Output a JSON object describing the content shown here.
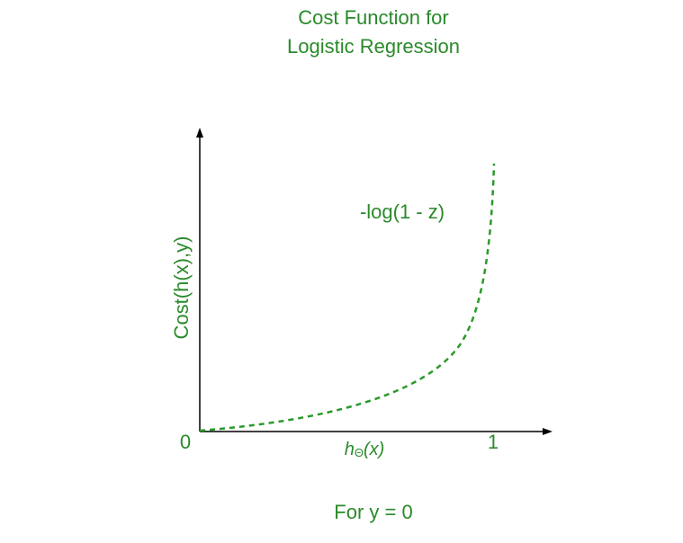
{
  "title": {
    "line1": "Cost Function for",
    "line2": "Logistic Regression"
  },
  "y_axis_label": "Cost(h(x),y)",
  "x_axis_label": {
    "base": "h",
    "subscript": "Θ",
    "argument": "(x)"
  },
  "origin_label": "0",
  "x_end_label": "1",
  "curve_label": "-log(1 - z)",
  "caption": "For y = 0"
}
